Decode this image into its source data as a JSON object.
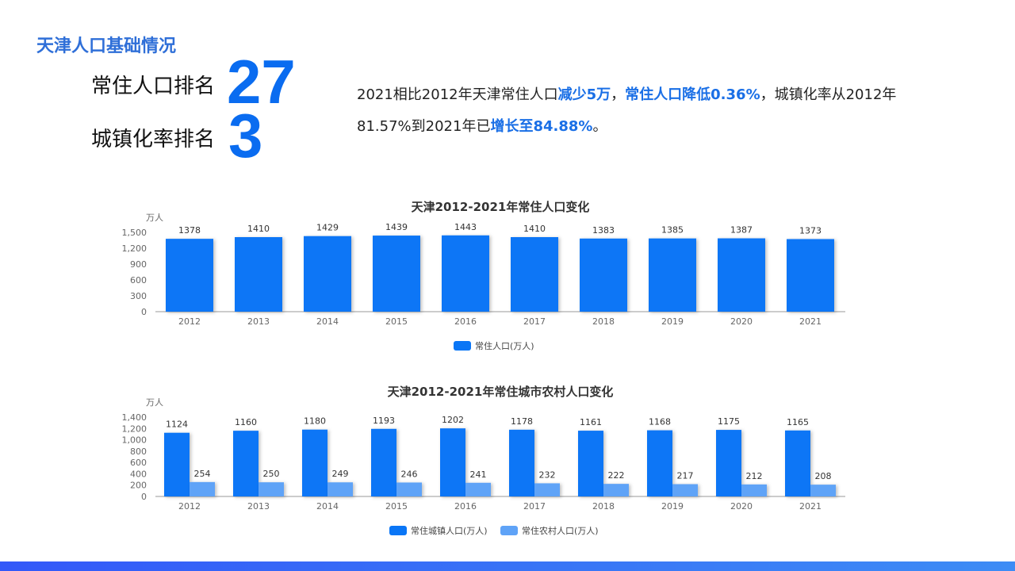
{
  "header": {
    "title": "天津人口基础情况"
  },
  "rankings": [
    {
      "label": "常住人口排名",
      "value": "27"
    },
    {
      "label": "城镇化率排名",
      "value": "3"
    }
  ],
  "summary": {
    "parts": [
      {
        "text": "2021相比2012年天津常住人口",
        "highlight": false
      },
      {
        "text": "减少5万",
        "highlight": true
      },
      {
        "text": "，",
        "highlight": false
      },
      {
        "text": "常住人口降低0.36%",
        "highlight": true
      },
      {
        "text": "，城镇化率从2012年81.57%到2021年已",
        "highlight": false
      },
      {
        "text": "增长至84.88%",
        "highlight": true
      },
      {
        "text": "。",
        "highlight": false
      }
    ]
  },
  "colors": {
    "primary": "#0a76f6",
    "secondary": "#5fa3f7",
    "accent_text": "#1a6fe6"
  },
  "chart_data": [
    {
      "type": "bar",
      "title": "天津2012-2021年常住人口变化",
      "ylabel": "万人",
      "categories": [
        "2012",
        "2013",
        "2014",
        "2015",
        "2016",
        "2017",
        "2018",
        "2019",
        "2020",
        "2021"
      ],
      "series": [
        {
          "name": "常住人口(万人)",
          "values": [
            1378,
            1410,
            1429,
            1439,
            1443,
            1410,
            1383,
            1385,
            1387,
            1373
          ],
          "color": "#0a76f6"
        }
      ],
      "yticks": [
        "0",
        "300",
        "600",
        "900",
        "1,200",
        "1,500"
      ],
      "ylim": [
        0,
        1500
      ],
      "grid": false,
      "legend": "bottom"
    },
    {
      "type": "bar",
      "title": "天津2012-2021年常住城市农村人口变化",
      "ylabel": "万人",
      "categories": [
        "2012",
        "2013",
        "2014",
        "2015",
        "2016",
        "2017",
        "2018",
        "2019",
        "2020",
        "2021"
      ],
      "series": [
        {
          "name": "常住城镇人口(万人)",
          "values": [
            1124,
            1160,
            1180,
            1193,
            1202,
            1178,
            1161,
            1168,
            1175,
            1165
          ],
          "color": "#0a76f6"
        },
        {
          "name": "常住农村人口(万人)",
          "values": [
            254,
            250,
            249,
            246,
            241,
            232,
            222,
            217,
            212,
            208
          ],
          "color": "#5fa3f7"
        }
      ],
      "yticks": [
        "0",
        "200",
        "400",
        "600",
        "800",
        "1,000",
        "1,200",
        "1,400"
      ],
      "ylim": [
        0,
        1400
      ],
      "grid": false,
      "legend": "bottom"
    }
  ]
}
